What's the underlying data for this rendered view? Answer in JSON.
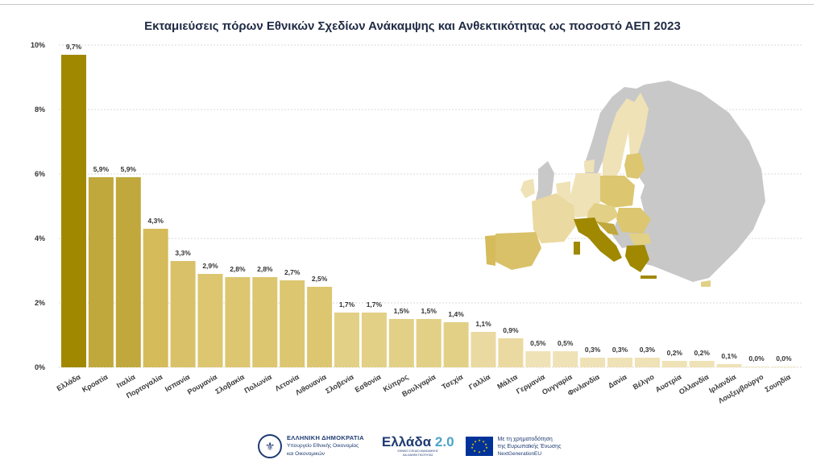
{
  "chart_data": {
    "type": "bar",
    "title": "Εκταμιεύσεις πόρων Εθνικών Σχεδίων Ανάκαμψης και Ανθεκτικότητας ως ποσοστό ΑΕΠ 2023",
    "xlabel": "",
    "ylabel": "",
    "ylim": [
      0,
      10
    ],
    "yticks": [
      0,
      2,
      4,
      6,
      8,
      10
    ],
    "ytick_labels": [
      "0%",
      "2%",
      "4%",
      "6%",
      "8%",
      "10%"
    ],
    "grid": true,
    "categories": [
      "Ελλάδα",
      "Κροατία",
      "Ιταλία",
      "Πορτογαλία",
      "Ισπανία",
      "Ρουμανία",
      "Σλοβακία",
      "Πολωνία",
      "Λετονία",
      "Λιθουανία",
      "Σλοβενία",
      "Εσθονία",
      "Κύπρος",
      "Βουλγαρία",
      "Τσεχία",
      "Γαλλία",
      "Μάλτα",
      "Γερμανία",
      "Ουγγαρία",
      "Φινλανδία",
      "Δανία",
      "Βέλγιο",
      "Αυστρία",
      "Ολλανδία",
      "Ιρλανδία",
      "Λουξεμβούργο",
      "Σουηδία"
    ],
    "values": [
      9.7,
      5.9,
      5.9,
      4.3,
      3.3,
      2.9,
      2.8,
      2.8,
      2.7,
      2.5,
      1.7,
      1.7,
      1.5,
      1.5,
      1.4,
      1.1,
      0.9,
      0.5,
      0.5,
      0.3,
      0.3,
      0.3,
      0.2,
      0.2,
      0.1,
      0.0,
      0.0
    ],
    "value_labels": [
      "9,7%",
      "5,9%",
      "5,9%",
      "4,3%",
      "3,3%",
      "2,9%",
      "2,8%",
      "2,8%",
      "2,7%",
      "2,5%",
      "1,7%",
      "1,7%",
      "1,5%",
      "1,5%",
      "1,4%",
      "1,1%",
      "0,9%",
      "0,5%",
      "0,5%",
      "0,3%",
      "0,3%",
      "0,3%",
      "0,2%",
      "0,2%",
      "0,1%",
      "0,0%",
      "0,0%"
    ],
    "colors": [
      "#a08800",
      "#c0a83c",
      "#c0a83c",
      "#d5bb5a",
      "#d9c16a",
      "#dcc670",
      "#dcc670",
      "#dcc670",
      "#dcc670",
      "#dcc670",
      "#e2d086",
      "#e2d086",
      "#e2d086",
      "#e2d086",
      "#e2d086",
      "#ead9a0",
      "#ead9a0",
      "#efe2b6",
      "#efe2b6",
      "#efe2b6",
      "#efe2b6",
      "#efe2b6",
      "#efe2b6",
      "#efe2b6",
      "#efe2b6",
      "#efe2b6",
      "#efe2b6"
    ]
  },
  "colors": {
    "gridline": "#d9d9d9",
    "map_grey": "#c8c8c8",
    "map_dark": "#a08800",
    "map_mid": "#d2b84e",
    "map_light": "#e8d895",
    "map_pale": "#f0e3b0"
  },
  "footer": {
    "gov_title": "ΕΛΛΗΝΙΚΗ ΔΗΜΟΚΡΑΤΙΑ",
    "gov_line1": "Υπουργείο Εθνικής Οικονομίας",
    "gov_line2": "και Οικονομικών",
    "greece_word": "Ελλάδα",
    "greece_num": "2.0",
    "greece_sub1": "ΕΘΝΙΚΟ ΣΧΕΔΙΟ ΑΝΑΚΑΜΨΗΣ",
    "greece_sub2": "ΚΑΙ ΑΝΘΕΚΤΙΚΟΤΗΤΑΣ",
    "eu_line1": "Με τη χρηματοδότηση",
    "eu_line2": "της Ευρωπαϊκής Ένωσης",
    "eu_ngeu": "NextGenerationEU"
  }
}
